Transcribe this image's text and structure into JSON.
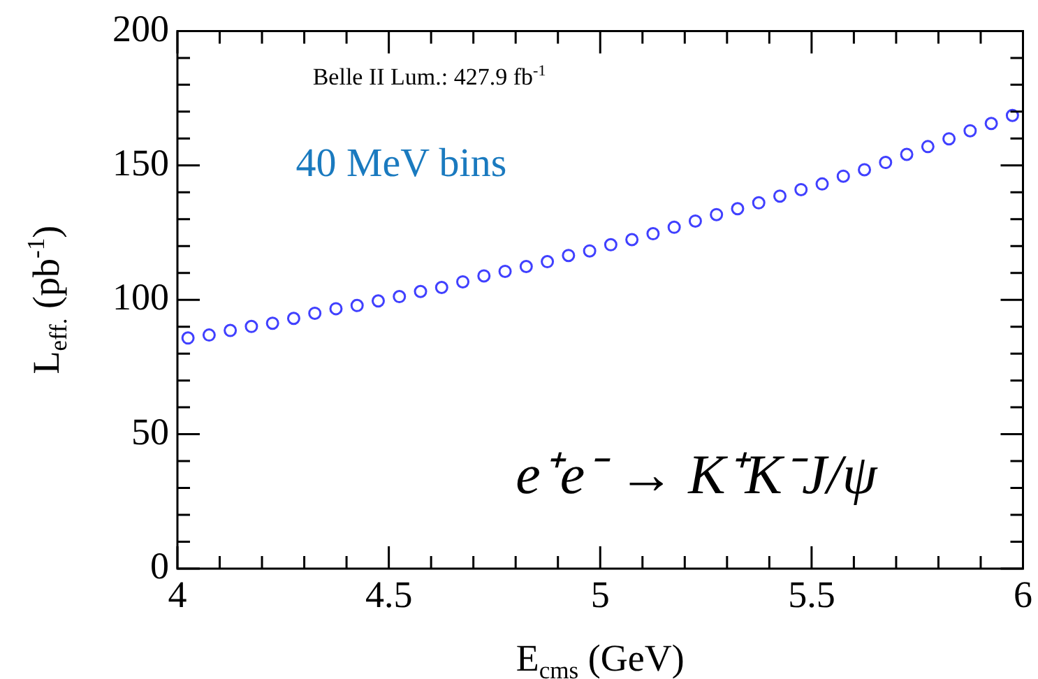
{
  "chart_data": {
    "type": "scatter",
    "xlabel": "E$_{cms}$ (GeV)",
    "ylabel": "L$_{eff.}$ (pb$^{-1}$)",
    "annotations": [
      "Belle II Lum.: 427.9 fb$^{-1}$",
      "40 MeV bins",
      "e⁺e⁻ → K⁺K⁻J/ψ"
    ],
    "x": [
      4.025,
      4.075,
      4.125,
      4.175,
      4.225,
      4.275,
      4.325,
      4.375,
      4.425,
      4.475,
      4.525,
      4.575,
      4.625,
      4.675,
      4.725,
      4.775,
      4.825,
      4.875,
      4.925,
      4.975,
      5.025,
      5.075,
      5.125,
      5.175,
      5.225,
      5.275,
      5.325,
      5.375,
      5.425,
      5.475,
      5.525,
      5.575,
      5.625,
      5.675,
      5.725,
      5.775,
      5.825,
      5.875,
      5.925,
      5.975
    ],
    "series": [
      {
        "color": "#4040ff",
        "values": [
          85.8,
          86.9,
          88.6,
          90.1,
          91.3,
          93.1,
          95.0,
          96.7,
          97.9,
          99.6,
          101.2,
          103.1,
          104.6,
          106.7,
          108.9,
          110.6,
          112.4,
          114.2,
          116.5,
          118.2,
          120.5,
          122.4,
          124.6,
          127.0,
          129.3,
          131.7,
          133.9,
          136.1,
          138.6,
          141.0,
          143.1,
          146.0,
          148.4,
          151.1,
          154.1,
          157.0,
          159.9,
          162.9,
          165.6,
          168.6
        ]
      }
    ],
    "xlim": [
      4,
      6
    ],
    "xticks": [
      4,
      4.5,
      5,
      5.5,
      6
    ],
    "ylim": [
      0,
      200
    ],
    "yticks": [
      0,
      50,
      100,
      150,
      200
    ],
    "grid": false,
    "legend": false,
    "marker": "circle"
  }
}
